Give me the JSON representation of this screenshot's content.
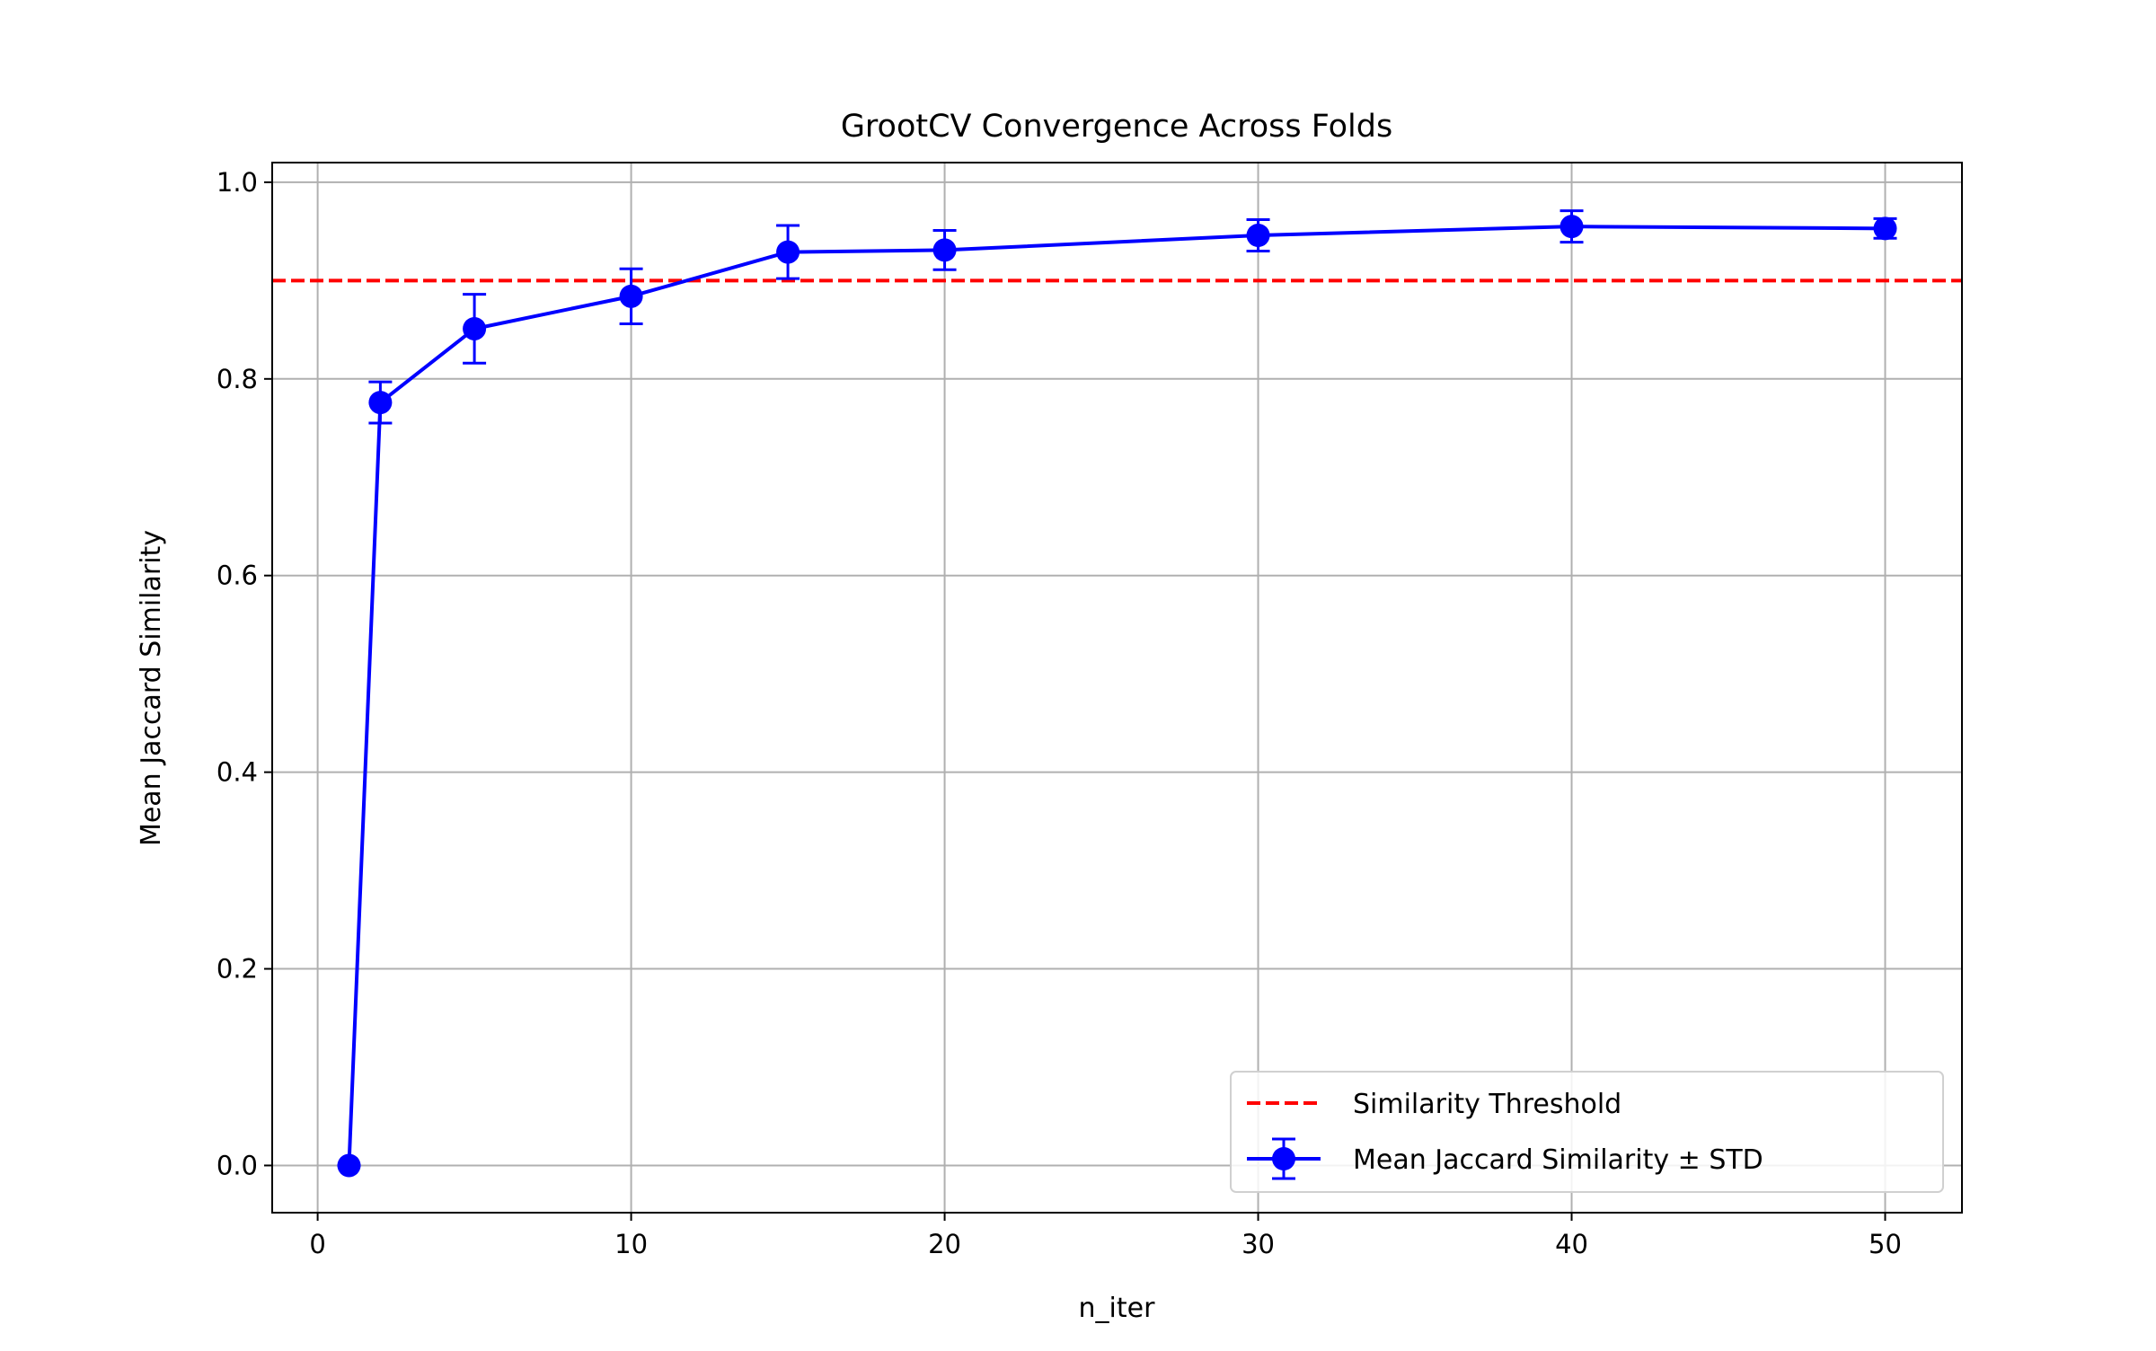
{
  "chart_data": {
    "type": "line",
    "title": "GrootCV Convergence Across Folds",
    "xlabel": "n_iter",
    "ylabel": "Mean Jaccard Similarity",
    "xlim": [
      -1.45,
      52.45
    ],
    "ylim": [
      -0.048,
      1.02
    ],
    "xticks": [
      0,
      10,
      20,
      30,
      40,
      50
    ],
    "xtick_labels": [
      "0",
      "10",
      "20",
      "30",
      "40",
      "50"
    ],
    "yticks": [
      0.0,
      0.2,
      0.4,
      0.6,
      0.8,
      1.0
    ],
    "ytick_labels": [
      "0.0",
      "0.2",
      "0.4",
      "0.6",
      "0.8",
      "1.0"
    ],
    "grid": true,
    "legend_position": "lower-right",
    "series": [
      {
        "name": "Mean Jaccard Similarity ± STD",
        "color": "#0000ff",
        "marker": "circle",
        "x": [
          1,
          2,
          5,
          10,
          15,
          20,
          30,
          40,
          50
        ],
        "y": [
          0.0,
          0.776,
          0.851,
          0.884,
          0.929,
          0.931,
          0.946,
          0.955,
          0.953
        ],
        "err": [
          0.0,
          0.021,
          0.035,
          0.028,
          0.027,
          0.02,
          0.016,
          0.016,
          0.01
        ]
      }
    ],
    "hlines": [
      {
        "name": "Similarity Threshold",
        "y": 0.9,
        "color": "#ff0000",
        "style": "dashed"
      }
    ]
  }
}
